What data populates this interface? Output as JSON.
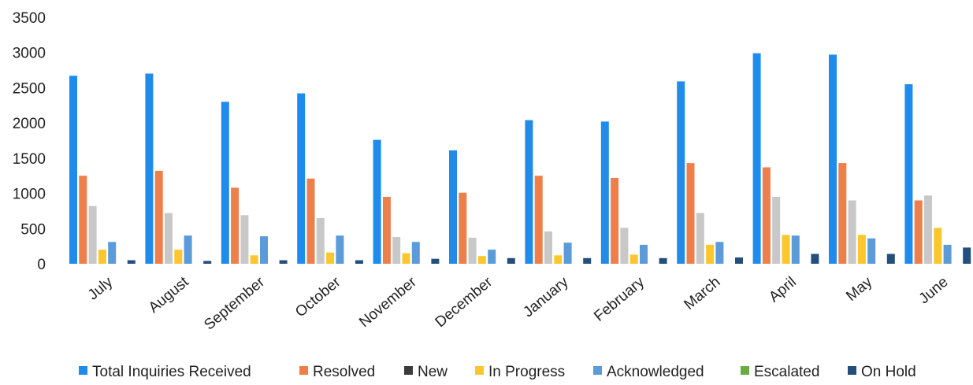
{
  "chart_data": {
    "type": "bar",
    "title": "",
    "xlabel": "",
    "ylabel": "",
    "ylim": [
      0,
      3500
    ],
    "yticks": [
      0,
      500,
      1000,
      1500,
      2000,
      2500,
      3000,
      3500
    ],
    "grid": false,
    "legend_position": "bottom",
    "categories": [
      "July",
      "August",
      "September",
      "October",
      "November",
      "December",
      "January",
      "February",
      "March",
      "April",
      "May",
      "June"
    ],
    "series": [
      {
        "name": "Total Inquiries Received",
        "color": "#1f8ceb",
        "values": [
          2670,
          2700,
          2300,
          2420,
          1760,
          1610,
          2040,
          2020,
          2590,
          2990,
          2970,
          2550
        ]
      },
      {
        "name": "Resolved",
        "color": "#ee7f4b",
        "values": [
          1250,
          1320,
          1080,
          1210,
          950,
          1010,
          1250,
          1220,
          1430,
          1370,
          1430,
          900
        ]
      },
      {
        "name": "New",
        "color": "#c8c8c8",
        "values": [
          820,
          720,
          690,
          650,
          380,
          370,
          460,
          510,
          720,
          950,
          900,
          970
        ]
      },
      {
        "name": "In Progress",
        "color": "#fcc72e",
        "values": [
          200,
          200,
          120,
          160,
          150,
          110,
          120,
          130,
          270,
          410,
          410,
          510
        ]
      },
      {
        "name": "Acknowledged",
        "color": "#5b9bd9",
        "values": [
          310,
          400,
          390,
          400,
          310,
          200,
          300,
          270,
          310,
          400,
          360,
          270
        ]
      },
      {
        "name": "Escalated",
        "color": "#6aab44",
        "values": [
          0,
          0,
          0,
          0,
          0,
          0,
          0,
          0,
          0,
          0,
          0,
          0
        ]
      },
      {
        "name": "On Hold",
        "color": "#244f7c",
        "values": [
          50,
          40,
          50,
          50,
          70,
          80,
          80,
          80,
          90,
          140,
          140,
          230
        ]
      }
    ]
  },
  "legend": {
    "markers": {
      "New": "#3b3b3b"
    }
  }
}
